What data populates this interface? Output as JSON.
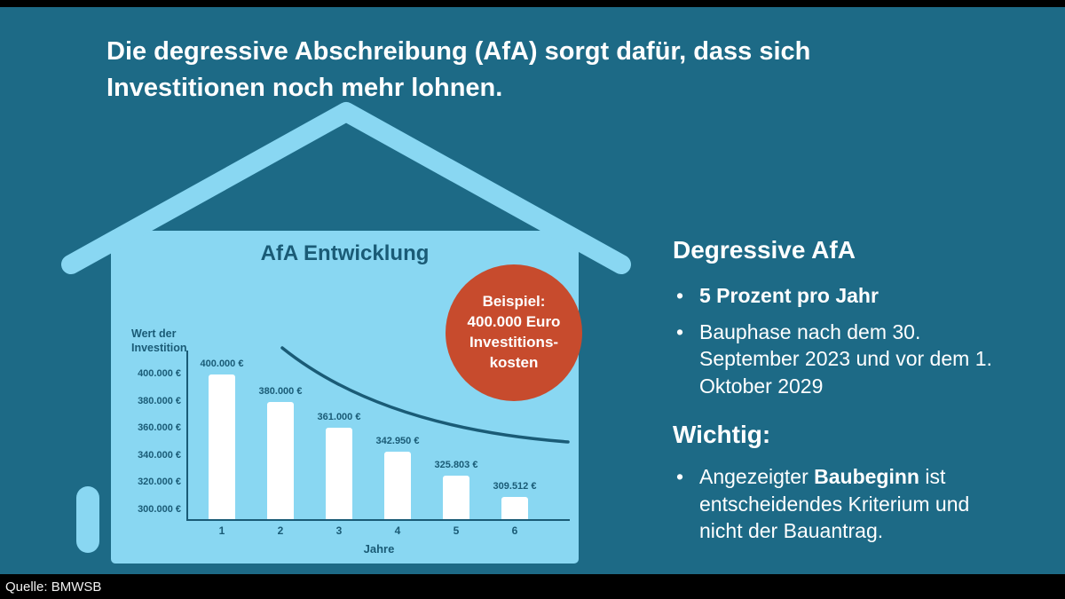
{
  "headline": {
    "line1": "Die degressive Abschreibung (AfA) sorgt dafür, dass sich",
    "line2": "Investitionen noch mehr lohnen."
  },
  "badge": {
    "lines": [
      "Beispiel:",
      "400.000 Euro",
      "Investitions-",
      "kosten"
    ]
  },
  "right_panel": {
    "title": "Degressive AfA",
    "bullet1": "5 Prozent pro Jahr",
    "bullet2": "Bauphase nach dem 30. September 2023 und vor dem 1. Oktober 2029",
    "important_title": "Wichtig:",
    "bullet3_pre": "Angezeigter ",
    "bullet3_bold": "Baubeginn",
    "bullet3_post": " ist entscheidendes Kriterium und nicht der Bauantrag."
  },
  "source_label": "Quelle: BMWSB",
  "chart_data": {
    "type": "bar",
    "title": "AfA Entwicklung",
    "xlabel": "Jahre",
    "ylabel": "Wert der Investition",
    "categories": [
      "1",
      "2",
      "3",
      "4",
      "5",
      "6"
    ],
    "values": [
      400000,
      380000,
      361000,
      342950,
      325803,
      309512
    ],
    "bar_labels": [
      "400.000 €",
      "380.000 €",
      "361.000 €",
      "342.950 €",
      "325.803 €",
      "309.512 €"
    ],
    "y_ticks": [
      "400.000 €",
      "380.000 €",
      "360.000 €",
      "340.000 €",
      "320.000 €",
      "300.000 €"
    ],
    "ylim": [
      293000,
      410000
    ],
    "grid": false,
    "legend": null,
    "overlay": "declining exponential trend curve",
    "annotation": "Beispiel: 400.000 Euro Investitionskosten"
  },
  "colors": {
    "background": "#1d6a86",
    "house": "#89d7f2",
    "chart_text": "#1a5b76",
    "badge": "#c74b2d",
    "bars": "#ffffff",
    "text": "#ffffff"
  }
}
